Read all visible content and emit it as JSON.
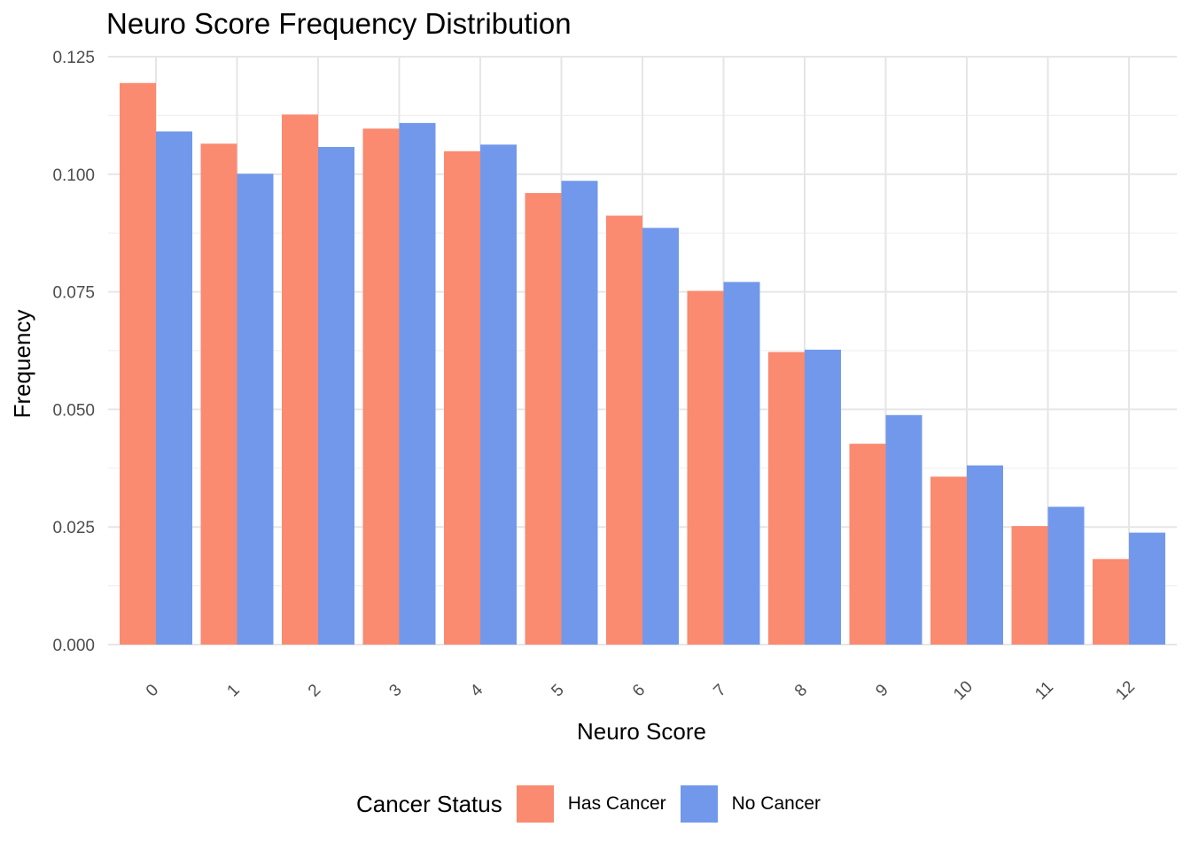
{
  "chart_data": {
    "type": "bar",
    "title": "Neuro Score Frequency Distribution",
    "xlabel": "Neuro Score",
    "ylabel": "Frequency",
    "categories": [
      "0",
      "1",
      "2",
      "3",
      "4",
      "5",
      "6",
      "7",
      "8",
      "9",
      "10",
      "11",
      "12"
    ],
    "yticks": [
      "0.000",
      "0.025",
      "0.050",
      "0.075",
      "0.100",
      "0.125"
    ],
    "ylim": [
      0,
      0.125
    ],
    "grid": true,
    "legend_position": "bottom",
    "legend_title": "Cancer Status",
    "series": [
      {
        "name": "Has Cancer",
        "color": "#FA8A70",
        "values": [
          0.1194,
          0.1065,
          0.1127,
          0.1097,
          0.1049,
          0.096,
          0.0912,
          0.0752,
          0.0622,
          0.0427,
          0.0357,
          0.0252,
          0.0182
        ]
      },
      {
        "name": "No Cancer",
        "color": "#7298EB",
        "values": [
          0.1091,
          0.1001,
          0.1058,
          0.1109,
          0.1063,
          0.0986,
          0.0886,
          0.0771,
          0.0627,
          0.0488,
          0.0381,
          0.0293,
          0.0238
        ]
      }
    ]
  }
}
